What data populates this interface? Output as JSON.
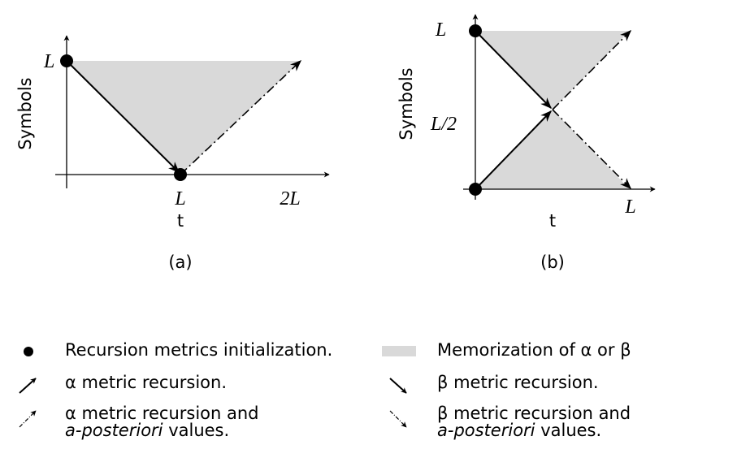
{
  "panels": [
    {
      "label": "(a)",
      "y_axis_label": "Symbols",
      "x_axis_label": "t",
      "y_ticks": [
        "L"
      ],
      "x_ticks": [
        "L",
        "2L"
      ]
    },
    {
      "label": "(b)",
      "y_axis_label": "Symbols",
      "x_axis_label": "t",
      "y_ticks": [
        "L",
        "L/2"
      ],
      "x_ticks": [
        "L"
      ]
    }
  ],
  "legend": [
    {
      "lines": [
        "Recursion metrics initialization."
      ]
    },
    {
      "lines": [
        "Memorization of α or β"
      ]
    },
    {
      "lines": [
        "α metric recursion."
      ]
    },
    {
      "lines": [
        "β metric recursion."
      ]
    },
    {
      "lines": [
        "α metric recursion and"
      ],
      "emphasis": "a-posteriori",
      "tail": " values."
    },
    {
      "lines": [
        "β metric recursion and"
      ],
      "emphasis": "a-posteriori",
      "tail": " values."
    }
  ]
}
